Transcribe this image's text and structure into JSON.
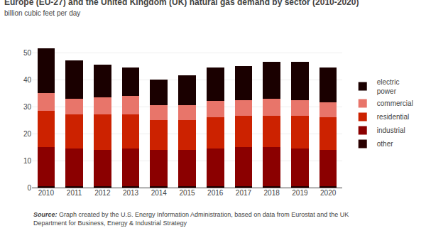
{
  "chart_data": {
    "type": "bar",
    "stacked": true,
    "title": "Europe (EU-27) and the United Kingdom (UK) natural gas demand by sector (2010-2020)",
    "subtitle": "billion cubic feet per day",
    "annotations": [
      "Source:",
      "Graph created by the U.S. Energy Information Administration, based on data from Eurostat and the UK\nDepartment for Business, Energy & Industrial Strategy"
    ],
    "categories": [
      "2010",
      "2011",
      "2012",
      "2013",
      "2014",
      "2015",
      "2016",
      "2017",
      "2018",
      "2019",
      "2020"
    ],
    "series": [
      {
        "name": "other",
        "color": "#2a0000",
        "values": [
          0.5,
          0.5,
          0.5,
          0.5,
          0.5,
          0.5,
          0.5,
          0.5,
          0.5,
          0.5,
          0.5
        ]
      },
      {
        "name": "industrial",
        "color": "#8b0000",
        "values": [
          14.5,
          14.0,
          13.5,
          14.0,
          13.5,
          13.5,
          14.0,
          14.5,
          14.5,
          14.0,
          13.5
        ]
      },
      {
        "name": "residential",
        "color": "#cc2200",
        "values": [
          13.5,
          12.5,
          13.0,
          12.5,
          11.0,
          11.0,
          11.5,
          11.5,
          11.5,
          12.0,
          12.0
        ]
      },
      {
        "name": "commercial",
        "color": "#e8756a",
        "values": [
          6.5,
          6.0,
          6.5,
          7.0,
          5.5,
          5.5,
          6.0,
          6.0,
          6.5,
          6.0,
          5.5
        ]
      },
      {
        "name": "electric\npower",
        "color": "#1a0000",
        "values": [
          16.5,
          14.0,
          12.0,
          10.5,
          9.5,
          11.0,
          12.5,
          12.5,
          13.5,
          14.0,
          13.0
        ]
      }
    ],
    "ylim": [
      0,
      55
    ],
    "yticks": [
      0,
      10,
      20,
      30,
      40,
      50
    ],
    "grid": true,
    "legend": "right"
  }
}
